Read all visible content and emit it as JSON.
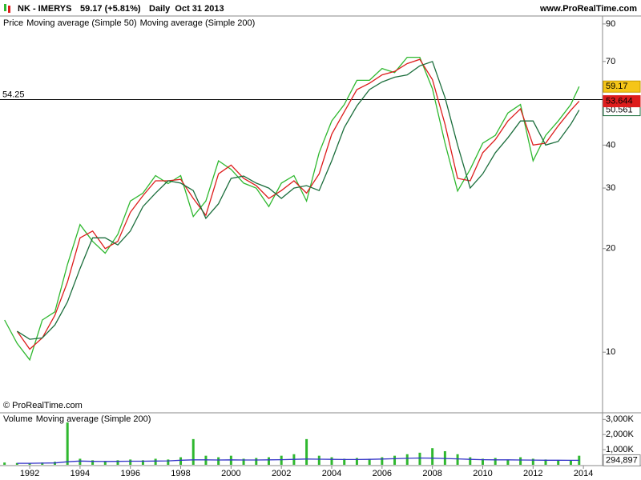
{
  "chart_data": [
    {
      "type": "line",
      "title": "NK - IMERYS",
      "subtitle": "59.17 (+5.81%)",
      "period": "Daily  Oct 31 2013",
      "source": "www.ProRealTime.com",
      "legend_prefix": "Price",
      "watermark": "© ProRealTime.com",
      "log_scale": true,
      "grid": false,
      "hline": 54.25,
      "x": [
        1991.0,
        1991.5,
        1992.0,
        1992.5,
        1993.0,
        1993.5,
        1994.0,
        1994.5,
        1995.0,
        1995.5,
        1996.0,
        1996.5,
        1997.0,
        1997.5,
        1998.0,
        1998.5,
        1999.0,
        1999.5,
        2000.0,
        2000.5,
        2001.0,
        2001.5,
        2002.0,
        2002.5,
        2003.0,
        2003.5,
        2004.0,
        2004.5,
        2005.0,
        2005.5,
        2006.0,
        2006.5,
        2007.0,
        2007.5,
        2008.0,
        2008.5,
        2009.0,
        2009.5,
        2010.0,
        2010.5,
        2011.0,
        2011.5,
        2012.0,
        2012.5,
        2013.0,
        2013.5,
        2013.83
      ],
      "xlim": [
        1990.82,
        2014.76
      ],
      "ylim": [
        6.7,
        93.9
      ],
      "yticks": [
        10,
        20,
        30,
        40,
        70,
        90
      ],
      "series": [
        {
          "name": "Price",
          "color": "#2fb82f",
          "values": [
            12.4,
            10.6,
            9.5,
            12.4,
            13.1,
            18.0,
            23.5,
            21,
            19.4,
            22,
            27.5,
            29,
            32.6,
            30.9,
            32.6,
            24.8,
            27.5,
            36,
            34,
            31,
            30,
            26.5,
            31,
            32.6,
            27.5,
            38,
            47,
            52.5,
            61.7,
            61.7,
            66.8,
            65,
            72,
            72,
            58.3,
            40.5,
            29.4,
            34,
            40.5,
            42.7,
            49.6,
            52.5,
            36,
            42.7,
            47,
            52.5,
            59.17
          ]
        },
        {
          "name": "Moving average (Simple 50)",
          "color": "#dd1c1c",
          "values": [
            null,
            11.5,
            10.2,
            11.0,
            12.8,
            16.0,
            21.5,
            22.5,
            20.0,
            21.0,
            25.5,
            28.5,
            31.5,
            31.5,
            31.8,
            28.0,
            25.0,
            33.0,
            35.0,
            32.0,
            30.5,
            28.0,
            29.5,
            31.5,
            29.0,
            33.0,
            43.0,
            50.0,
            58.0,
            60.5,
            64.0,
            65.5,
            69.0,
            71.0,
            62.0,
            46.0,
            32.0,
            31.5,
            38.0,
            41.5,
            47.0,
            51.0,
            40.0,
            40.5,
            45.5,
            50.5,
            53.644
          ]
        },
        {
          "name": "Moving average (Simple 200)",
          "color": "#1b6e3c",
          "values": [
            null,
            11.5,
            10.9,
            11.0,
            12.0,
            14.0,
            17.5,
            21.5,
            21.5,
            20.5,
            22.5,
            26.5,
            29,
            31.5,
            31,
            29.5,
            24.5,
            27,
            32,
            32.5,
            31,
            30,
            28,
            30,
            30.5,
            29.5,
            36,
            45,
            52,
            58,
            61,
            63,
            64,
            68,
            70,
            55,
            40,
            30,
            33,
            38,
            42,
            47,
            47,
            40,
            41,
            46,
            50.561
          ]
        }
      ]
    },
    {
      "type": "bar",
      "title": "Volume",
      "log_scale": false,
      "x": [
        1991.0,
        1991.5,
        1992.0,
        1992.5,
        1993.0,
        1993.5,
        1994.0,
        1994.5,
        1995.0,
        1995.5,
        1996.0,
        1996.5,
        1997.0,
        1997.5,
        1998.0,
        1998.5,
        1999.0,
        1999.5,
        2000.0,
        2000.5,
        2001.0,
        2001.5,
        2002.0,
        2002.5,
        2003.0,
        2003.5,
        2004.0,
        2004.5,
        2005.0,
        2005.5,
        2006.0,
        2006.5,
        2007.0,
        2007.5,
        2008.0,
        2008.5,
        2009.0,
        2009.5,
        2010.0,
        2010.5,
        2011.0,
        2011.5,
        2012.0,
        2012.5,
        2013.0,
        2013.5,
        2013.83
      ],
      "xlim": [
        1990.82,
        2014.76
      ],
      "xticks": [
        1992,
        1994,
        1996,
        1998,
        2000,
        2002,
        2004,
        2006,
        2008,
        2010,
        2012,
        2014
      ],
      "ylim": [
        0,
        3333333
      ],
      "yticks": [
        {
          "value": 3000000,
          "label": "3,000K"
        },
        {
          "value": 2000000,
          "label": "2,000K"
        },
        {
          "value": 1000000,
          "label": "1,000K"
        }
      ],
      "series": [
        {
          "name": "Volume",
          "color": "#2fb82f",
          "values": [
            150000,
            120000,
            100000,
            150000,
            200000,
            2800000,
            400000,
            300000,
            250000,
            300000,
            350000,
            300000,
            400000,
            350000,
            500000,
            1700000,
            600000,
            500000,
            600000,
            400000,
            450000,
            500000,
            600000,
            700000,
            1700000,
            600000,
            500000,
            400000,
            450000,
            400000,
            500000,
            600000,
            700000,
            800000,
            1100000,
            900000,
            700000,
            500000,
            400000,
            450000,
            350000,
            500000,
            400000,
            350000,
            300000,
            300000,
            600000
          ]
        },
        {
          "name": "Moving average (Simple 200)",
          "color": "#3535c8",
          "values": [
            null,
            100000,
            100000,
            110000,
            120000,
            200000,
            250000,
            230000,
            220000,
            230000,
            240000,
            240000,
            250000,
            260000,
            300000,
            330000,
            330000,
            320000,
            330000,
            320000,
            320000,
            330000,
            340000,
            360000,
            380000,
            370000,
            360000,
            350000,
            350000,
            360000,
            380000,
            400000,
            430000,
            450000,
            440000,
            420000,
            390000,
            360000,
            340000,
            330000,
            330000,
            320000,
            310000,
            300000,
            300000,
            295000,
            294897
          ],
          "value_labels": [
            null,
            null,
            null,
            null,
            null,
            null,
            null,
            null,
            null,
            null,
            null,
            null,
            null,
            null,
            null,
            null,
            null,
            null,
            null,
            null,
            null,
            null,
            null,
            null,
            null,
            null,
            null,
            null,
            null,
            null,
            null,
            null,
            null,
            null,
            null,
            null,
            null,
            null,
            null,
            null,
            null,
            null,
            null,
            null,
            null,
            null,
            "294,897"
          ]
        }
      ]
    }
  ]
}
